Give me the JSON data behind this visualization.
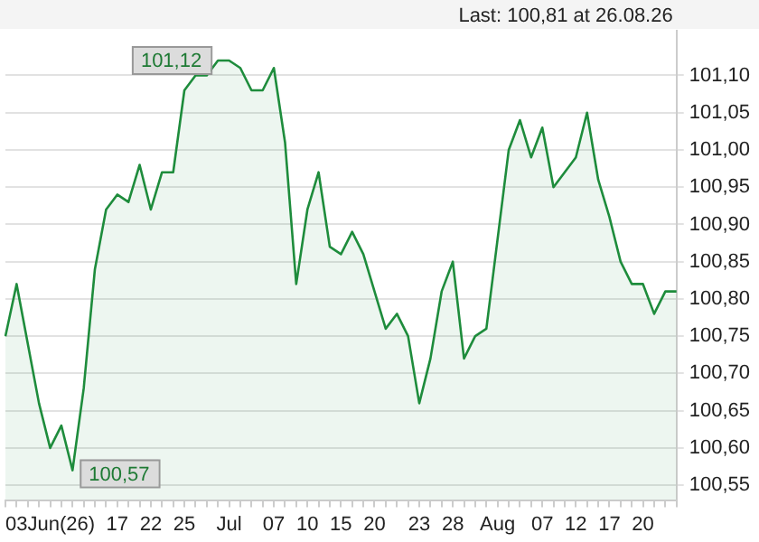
{
  "chart_data": {
    "type": "area",
    "categories": [
      null,
      null,
      null,
      null,
      "03Jun(26)",
      null,
      null,
      null,
      null,
      null,
      "17",
      null,
      null,
      "22",
      null,
      null,
      "25",
      null,
      null,
      null,
      "Jul",
      null,
      null,
      null,
      "07",
      null,
      null,
      "10",
      null,
      null,
      "15",
      null,
      null,
      "20",
      null,
      null,
      null,
      "23",
      null,
      null,
      "28",
      null,
      null,
      null,
      "Aug",
      null,
      null,
      null,
      "07",
      null,
      null,
      "12",
      null,
      null,
      "17",
      null,
      null,
      "20",
      null,
      null,
      null
    ],
    "series": [
      {
        "color": "#1e8c3c",
        "values": [
          100.75,
          100.82,
          100.74,
          100.66,
          100.6,
          100.63,
          100.57,
          100.68,
          100.84,
          100.92,
          100.94,
          100.93,
          100.98,
          100.92,
          100.97,
          100.97,
          101.08,
          101.1,
          101.1,
          101.12,
          101.12,
          101.11,
          101.08,
          101.08,
          101.11,
          101.01,
          100.82,
          100.92,
          100.97,
          100.87,
          100.86,
          100.89,
          100.86,
          100.81,
          100.76,
          100.78,
          100.75,
          100.66,
          100.72,
          100.81,
          100.85,
          100.72,
          100.75,
          100.76,
          100.88,
          101.0,
          101.04,
          100.99,
          101.03,
          100.95,
          100.97,
          100.99,
          101.05,
          100.96,
          100.91,
          100.85,
          100.82,
          100.82,
          100.78,
          100.81,
          100.81
        ]
      }
    ],
    "ylim": [
      100.53,
      101.16
    ],
    "yticks": [
      {
        "value": 100.55,
        "label": "100,55"
      },
      {
        "value": 100.6,
        "label": "100,60"
      },
      {
        "value": 100.65,
        "label": "100,65"
      },
      {
        "value": 100.7,
        "label": "100,70"
      },
      {
        "value": 100.75,
        "label": "100,75"
      },
      {
        "value": 100.8,
        "label": "100,80"
      },
      {
        "value": 100.85,
        "label": "100,85"
      },
      {
        "value": 100.9,
        "label": "100,90"
      },
      {
        "value": 100.95,
        "label": "100,95"
      },
      {
        "value": 101.0,
        "label": "101,00"
      },
      {
        "value": 101.05,
        "label": "101,05"
      },
      {
        "value": 101.1,
        "label": "101,10"
      }
    ],
    "grid": "y",
    "annotations": [
      "Last: 100,81 at 26.08.26",
      {
        "text": "101,12",
        "y": 101.12
      },
      {
        "text": "100,57",
        "y": 100.57
      }
    ]
  }
}
